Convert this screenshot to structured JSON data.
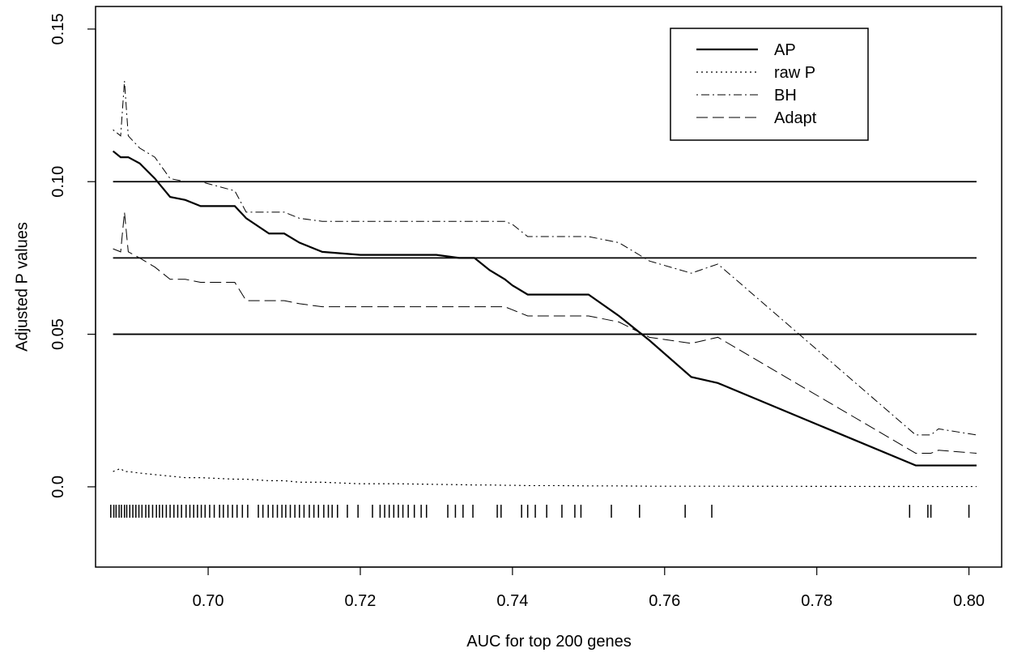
{
  "chart_data": {
    "type": "line",
    "x_label": "AUC for top 200 genes",
    "y_label": "Adjusted P values",
    "xlim": [
      0.6852,
      0.8043
    ],
    "ylim": [
      -0.0263,
      0.1574
    ],
    "xticks": [
      {
        "value": 0.7,
        "label": "0.70"
      },
      {
        "value": 0.72,
        "label": "0.72"
      },
      {
        "value": 0.74,
        "label": "0.74"
      },
      {
        "value": 0.76,
        "label": "0.76"
      },
      {
        "value": 0.78,
        "label": "0.78"
      },
      {
        "value": 0.8,
        "label": "0.80"
      }
    ],
    "yticks": [
      {
        "value": 0,
        "label": "0.0"
      },
      0.05,
      {
        "value": 0.1,
        "label": "0.10"
      },
      {
        "value": 0.15,
        "label": "0.15"
      }
    ],
    "hlines": [
      0.05,
      0.075,
      0.1
    ],
    "hline_xlim": [
      0.6875,
      0.801
    ],
    "rug_y": -0.008,
    "rug": [
      0.6872,
      0.6876,
      0.6879,
      0.6883,
      0.6886,
      0.689,
      0.6893,
      0.6897,
      0.6901,
      0.6905,
      0.6909,
      0.6913,
      0.6918,
      0.6922,
      0.6927,
      0.6932,
      0.6936,
      0.694,
      0.6945,
      0.695,
      0.6955,
      0.696,
      0.6965,
      0.6971,
      0.6976,
      0.6981,
      0.6986,
      0.6991,
      0.6996,
      0.7002,
      0.7008,
      0.7015,
      0.702,
      0.7026,
      0.7032,
      0.7038,
      0.7045,
      0.7052,
      0.7066,
      0.7072,
      0.7079,
      0.7085,
      0.7091,
      0.7097,
      0.7102,
      0.7108,
      0.7114,
      0.712,
      0.7126,
      0.7133,
      0.7139,
      0.7145,
      0.7152,
      0.7158,
      0.7163,
      0.717,
      0.7183,
      0.7197,
      0.7216,
      0.7226,
      0.7232,
      0.7238,
      0.7244,
      0.725,
      0.7256,
      0.7263,
      0.7271,
      0.728,
      0.7287,
      0.7315,
      0.7325,
      0.7335,
      0.7348,
      0.738,
      0.7385,
      0.7412,
      0.742,
      0.743,
      0.7445,
      0.7465,
      0.7482,
      0.749,
      0.753,
      0.7567,
      0.7627,
      0.7662,
      0.7922,
      0.7946,
      0.795,
      0.8
    ],
    "x": [
      0.6875,
      0.6885,
      0.689,
      0.6895,
      0.691,
      0.693,
      0.695,
      0.697,
      0.699,
      0.7035,
      0.705,
      0.708,
      0.71,
      0.712,
      0.715,
      0.72,
      0.725,
      0.73,
      0.733,
      0.735,
      0.737,
      0.739,
      0.74,
      0.742,
      0.746,
      0.75,
      0.754,
      0.758,
      0.7635,
      0.767,
      0.793,
      0.795,
      0.796,
      0.801
    ],
    "legend": "top-right",
    "series": [
      {
        "name": "AP",
        "color": "#000000",
        "dash": "solid",
        "width": 2.2,
        "values": [
          0.11,
          0.108,
          0.108,
          0.108,
          0.106,
          0.101,
          0.095,
          0.094,
          0.092,
          0.092,
          0.088,
          0.083,
          0.083,
          0.08,
          0.077,
          0.076,
          0.076,
          0.076,
          0.075,
          0.075,
          0.071,
          0.068,
          0.066,
          0.063,
          0.063,
          0.063,
          0.056,
          0.048,
          0.036,
          0.034,
          0.007,
          0.007,
          0.007,
          0.007
        ]
      },
      {
        "name": "raw P",
        "color": "#000000",
        "dash": "dotted",
        "width": 1.2,
        "values": [
          0.005,
          0.006,
          0.005,
          0.005,
          0.0045,
          0.004,
          0.0035,
          0.003,
          0.003,
          0.0025,
          0.0025,
          0.002,
          0.002,
          0.0015,
          0.0015,
          0.001,
          0.001,
          0.0008,
          0.0007,
          0.0006,
          0.0006,
          0.0005,
          0.0005,
          0.0004,
          0.0004,
          0.0003,
          0.0003,
          0.0002,
          0.0002,
          0.0002,
          0.0001,
          0.0001,
          0.0001,
          0.0001
        ]
      },
      {
        "name": "BH",
        "color": "#000000",
        "dash": "dotdash",
        "width": 1,
        "values": [
          0.117,
          0.115,
          0.133,
          0.115,
          0.111,
          0.108,
          0.101,
          0.1,
          0.1,
          0.097,
          0.09,
          0.09,
          0.09,
          0.088,
          0.087,
          0.087,
          0.087,
          0.087,
          0.087,
          0.087,
          0.087,
          0.087,
          0.086,
          0.082,
          0.082,
          0.082,
          0.08,
          0.074,
          0.07,
          0.073,
          0.017,
          0.017,
          0.019,
          0.017
        ]
      },
      {
        "name": "Adapt",
        "color": "#000000",
        "dash": "dashed",
        "width": 1,
        "values": [
          0.078,
          0.077,
          0.09,
          0.077,
          0.075,
          0.072,
          0.068,
          0.068,
          0.067,
          0.067,
          0.061,
          0.061,
          0.061,
          0.06,
          0.059,
          0.059,
          0.059,
          0.059,
          0.059,
          0.059,
          0.059,
          0.059,
          0.058,
          0.056,
          0.056,
          0.056,
          0.054,
          0.049,
          0.047,
          0.049,
          0.011,
          0.011,
          0.012,
          0.011
        ]
      }
    ]
  }
}
